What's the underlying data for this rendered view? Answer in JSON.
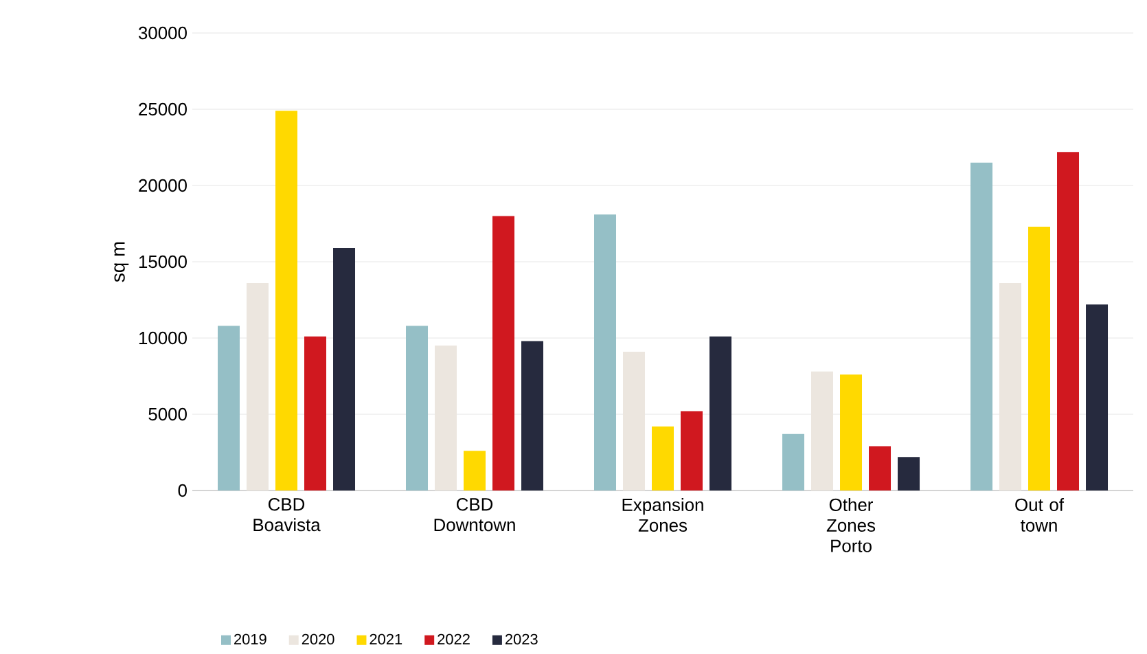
{
  "chart_data": {
    "type": "bar",
    "ylabel": "sq m",
    "categories": [
      "CBD Boavista",
      "CBD Downtown",
      "Expansion Zones",
      "Other Zones Porto",
      "Out of town"
    ],
    "series": [
      {
        "name": "2019",
        "color": "#95bfc6",
        "values": [
          10800,
          10800,
          18100,
          3700,
          21500
        ]
      },
      {
        "name": "2020",
        "color": "#ece6df",
        "values": [
          13600,
          9500,
          9100,
          7800,
          13600
        ]
      },
      {
        "name": "2021",
        "color": "#ffd900",
        "values": [
          24900,
          2600,
          4200,
          7600,
          17300
        ]
      },
      {
        "name": "2022",
        "color": "#d0181f",
        "values": [
          10100,
          18000,
          5200,
          2900,
          22200
        ]
      },
      {
        "name": "2023",
        "color": "#262a3e",
        "values": [
          15900,
          9800,
          10100,
          2200,
          12200
        ]
      }
    ],
    "ylim": [
      0,
      30000
    ],
    "yticks": [
      0,
      5000,
      10000,
      15000,
      20000,
      25000,
      30000
    ],
    "grid": "y",
    "legend": "bottom",
    "marker": "square"
  }
}
